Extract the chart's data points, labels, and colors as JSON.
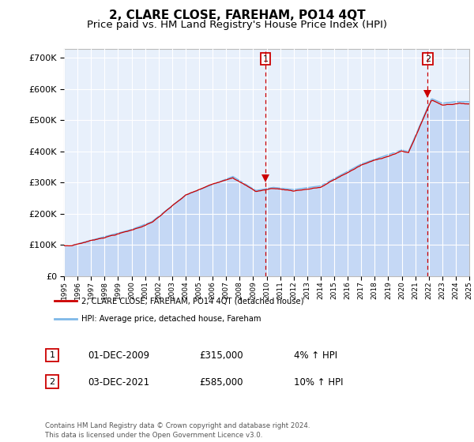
{
  "title": "2, CLARE CLOSE, FAREHAM, PO14 4QT",
  "subtitle": "Price paid vs. HM Land Registry's House Price Index (HPI)",
  "ylim": [
    0,
    730000
  ],
  "yticks": [
    0,
    100000,
    200000,
    300000,
    400000,
    500000,
    600000,
    700000
  ],
  "plot_bg": "#e8f0fb",
  "hpi_fill_color": "#c5d8f5",
  "hpi_line_color": "#7eb8e8",
  "price_color": "#cc0000",
  "sale1_x": 2009.917,
  "sale1_y": 315000,
  "sale2_x": 2021.917,
  "sale2_y": 585000,
  "legend_entry1": "2, CLARE CLOSE, FAREHAM, PO14 4QT (detached house)",
  "legend_entry2": "HPI: Average price, detached house, Fareham",
  "table_row1": [
    "1",
    "01-DEC-2009",
    "£315,000",
    "4% ↑ HPI"
  ],
  "table_row2": [
    "2",
    "03-DEC-2021",
    "£585,000",
    "10% ↑ HPI"
  ],
  "footnote": "Contains HM Land Registry data © Crown copyright and database right 2024.\nThis data is licensed under the Open Government Licence v3.0.",
  "xmin": 1995,
  "xmax": 2025,
  "title_fontsize": 11,
  "subtitle_fontsize": 9.5,
  "grid_color": "#ffffff",
  "spine_color": "#bbbbbb"
}
